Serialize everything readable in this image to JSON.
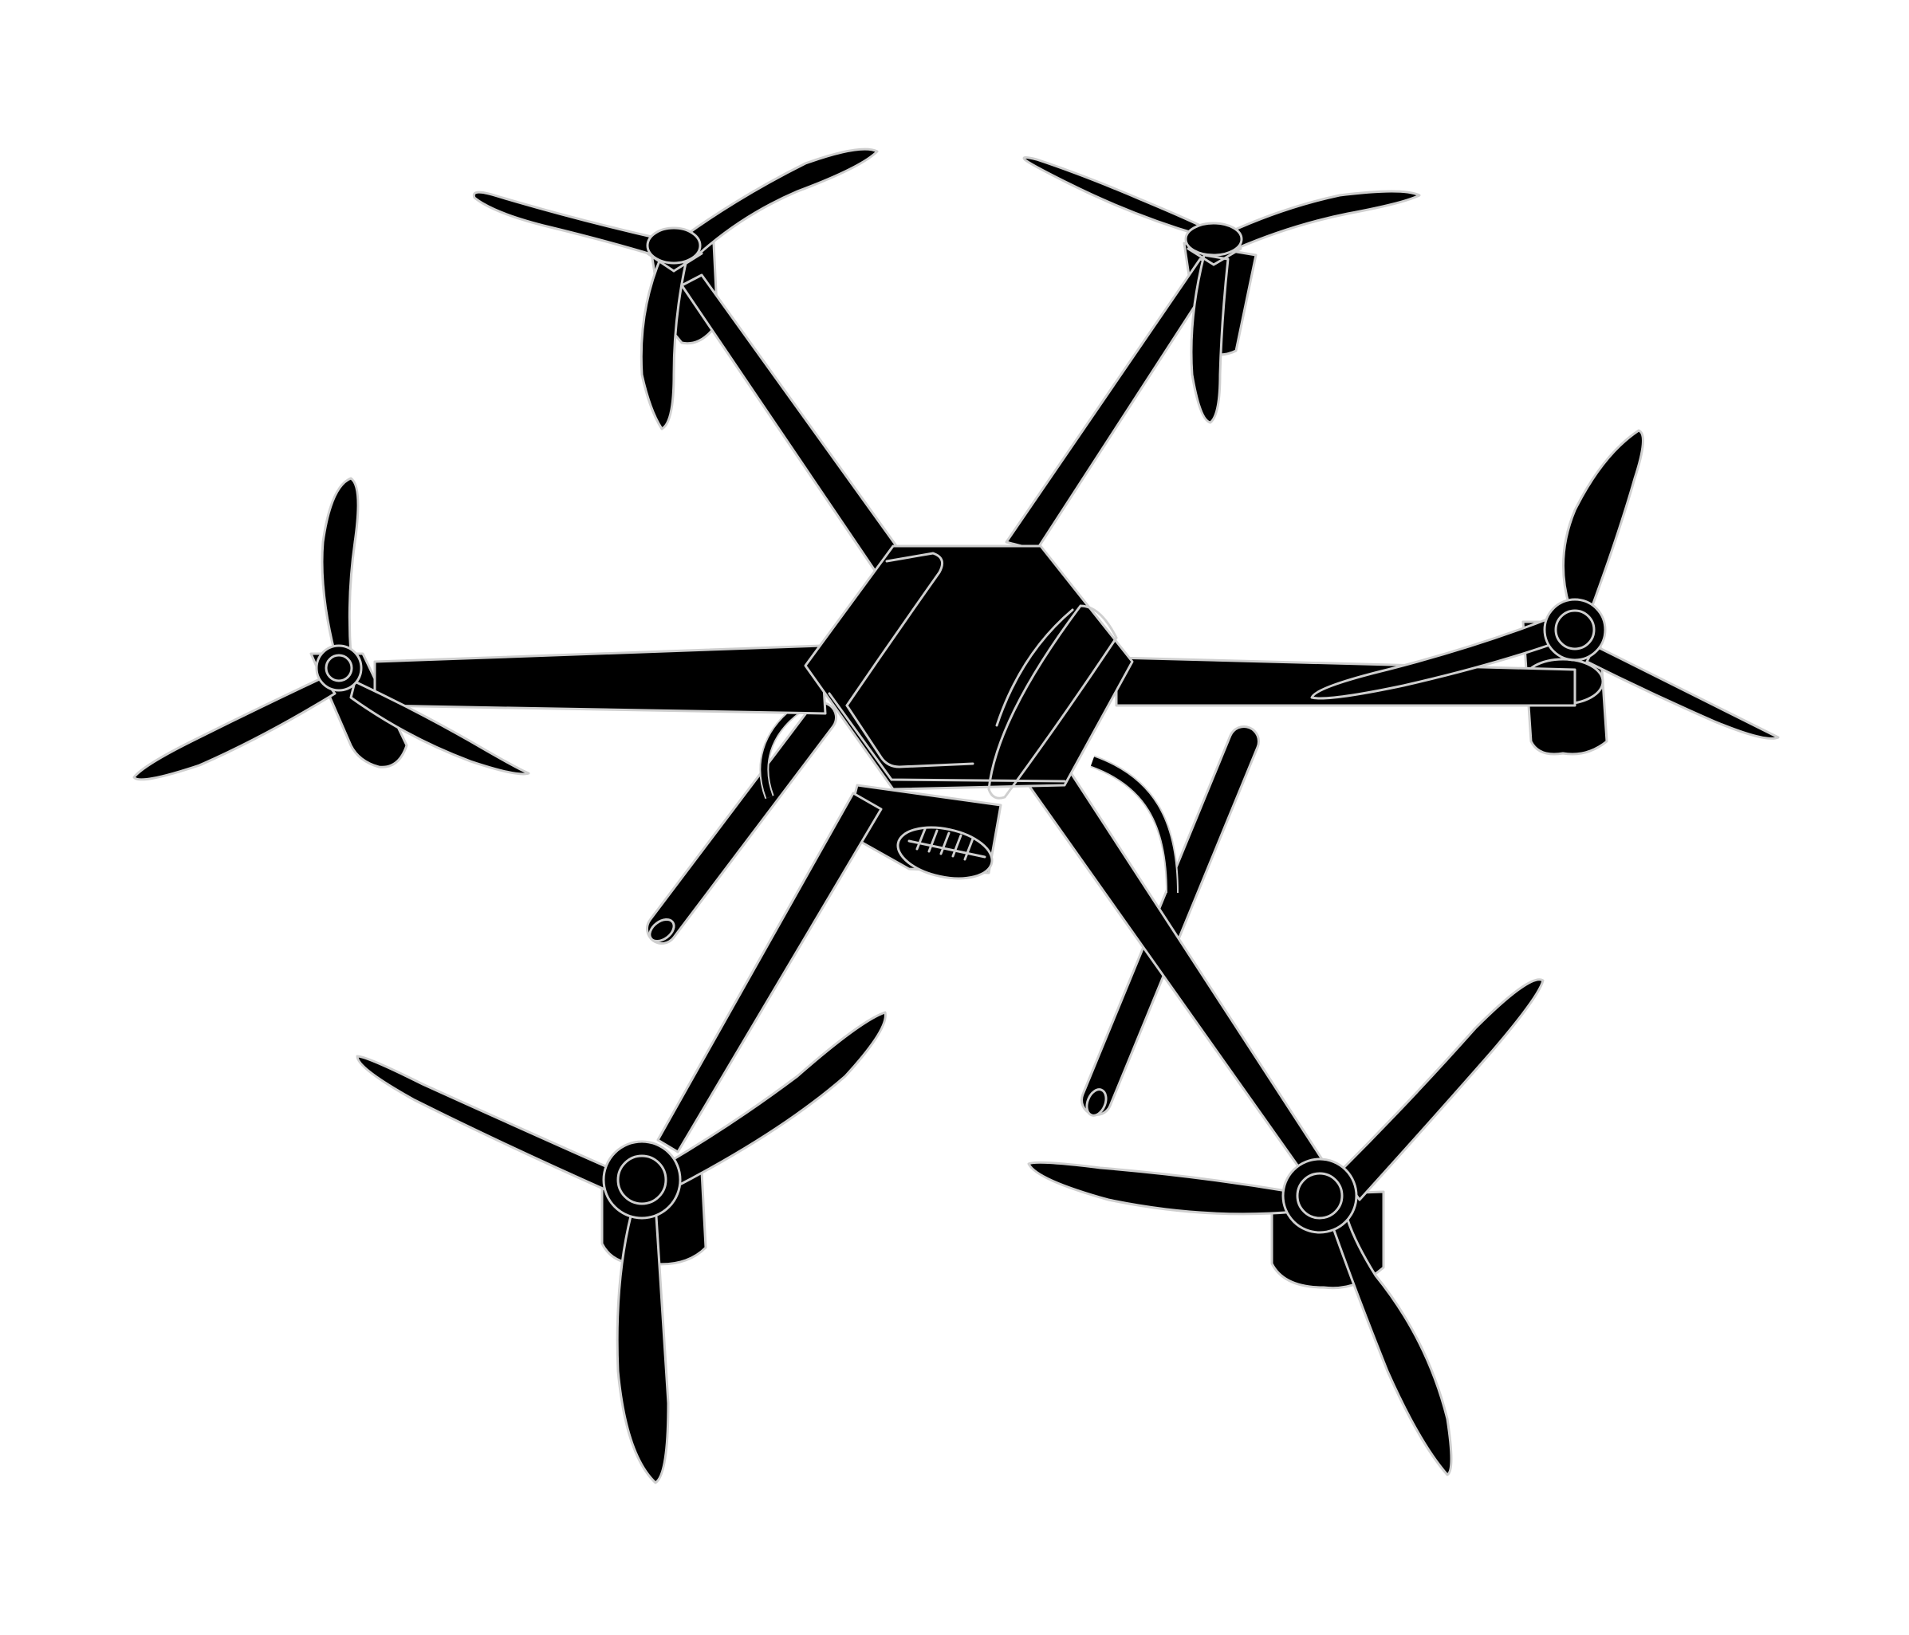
{
  "illustration": {
    "subject_icon": "hexacopter-drone-icon",
    "colors": {
      "background": "#ffffff",
      "fill": "#000000",
      "outline": "#cfcfcf"
    }
  }
}
